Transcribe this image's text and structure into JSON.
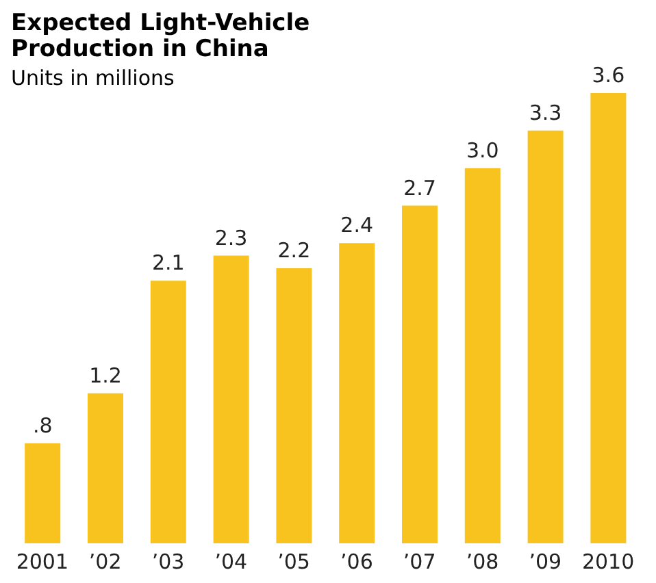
{
  "chart_data": {
    "type": "bar",
    "title": "Expected Light-Vehicle Production in China",
    "subtitle": "Units in millions",
    "categories": [
      "2001",
      "’02",
      "’03",
      "’04",
      "’05",
      "’06",
      "’07",
      "’08",
      "’09",
      "2010"
    ],
    "values": [
      0.8,
      1.2,
      2.1,
      2.3,
      2.2,
      2.4,
      2.7,
      3.0,
      3.3,
      3.6
    ],
    "value_labels": [
      ".8",
      "1.2",
      "2.1",
      "2.3",
      "2.2",
      "2.4",
      "2.7",
      "3.0",
      "3.3",
      "3.6"
    ],
    "color": "#f9c31f"
  }
}
